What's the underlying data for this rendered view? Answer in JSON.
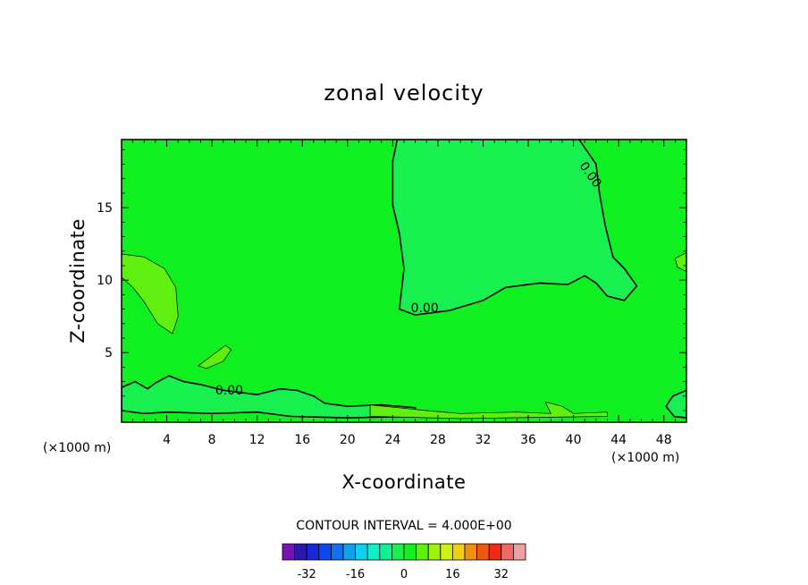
{
  "chart_data": {
    "type": "heatmap",
    "title": "zonal velocity",
    "xlabel": "X-coordinate",
    "ylabel": "Z-coordinate",
    "x_unit": "(×1000 m)",
    "z_unit": "(×1000 m)",
    "xlim": [
      0,
      50
    ],
    "ylim": [
      0.2,
      19.7
    ],
    "x_ticks": [
      4,
      8,
      12,
      16,
      20,
      24,
      28,
      32,
      36,
      40,
      44,
      48
    ],
    "y_ticks": [
      5,
      10,
      15
    ],
    "contour_interval_text": "CONTOUR INTERVAL = 4.000E+00",
    "contour_level_label": "0.00",
    "colorbar": {
      "levels": [
        -36,
        -32,
        -28,
        -24,
        -20,
        -16,
        -12,
        -8,
        -4,
        0,
        4,
        8,
        12,
        16,
        20,
        24,
        28,
        32,
        36
      ],
      "tick_labels": [
        "-32",
        "-16",
        "0",
        "16",
        "32"
      ],
      "tick_values": [
        -32,
        -16,
        0,
        16,
        32
      ],
      "colors": [
        "#7a10b8",
        "#2a18a8",
        "#1828d8",
        "#1048f0",
        "#1070f0",
        "#10a0f0",
        "#10d0f0",
        "#10f0c8",
        "#10f090",
        "#18f050",
        "#10f020",
        "#60f010",
        "#a0f010",
        "#d0f010",
        "#f0d010",
        "#f09010",
        "#f05810",
        "#f02818",
        "#f06868",
        "#f0a0a0"
      ]
    },
    "background_value_color": "#10f020",
    "regions": [
      {
        "name": "negative-upper-right",
        "color": "#18f050",
        "level": "0 to -4",
        "points": [
          [
            24.4,
            19.7
          ],
          [
            24.0,
            18.2
          ],
          [
            24.0,
            15.2
          ],
          [
            24.6,
            13.2
          ],
          [
            25.0,
            10.8
          ],
          [
            24.6,
            8.0
          ],
          [
            26.0,
            7.6
          ],
          [
            29.0,
            7.9
          ],
          [
            32.0,
            8.6
          ],
          [
            34.0,
            9.5
          ],
          [
            37.0,
            9.8
          ],
          [
            39.5,
            9.7
          ],
          [
            41.0,
            10.3
          ],
          [
            42.0,
            9.8
          ],
          [
            43.0,
            8.9
          ],
          [
            44.5,
            8.6
          ],
          [
            45.6,
            9.6
          ],
          [
            44.5,
            10.8
          ],
          [
            43.5,
            11.6
          ],
          [
            42.8,
            13.8
          ],
          [
            42.3,
            16.0
          ],
          [
            42.0,
            18.0
          ],
          [
            40.5,
            19.7
          ]
        ]
      },
      {
        "name": "negative-lower-left",
        "color": "#18f050",
        "level": "0 to -4",
        "points": [
          [
            0,
            2.6
          ],
          [
            1.2,
            3.0
          ],
          [
            2.3,
            2.5
          ],
          [
            3.0,
            2.9
          ],
          [
            4.2,
            3.4
          ],
          [
            5.5,
            3.0
          ],
          [
            7.0,
            2.8
          ],
          [
            9.0,
            2.4
          ],
          [
            12.0,
            2.1
          ],
          [
            14.0,
            2.5
          ],
          [
            15.5,
            2.4
          ],
          [
            17.0,
            2.0
          ],
          [
            18.0,
            1.5
          ],
          [
            20.0,
            1.3
          ],
          [
            23.0,
            1.4
          ],
          [
            26.0,
            1.2
          ],
          [
            26.0,
            0.6
          ],
          [
            20.0,
            0.5
          ],
          [
            15.0,
            0.6
          ],
          [
            12.0,
            0.9
          ],
          [
            8.0,
            0.8
          ],
          [
            4.0,
            0.9
          ],
          [
            2.0,
            0.8
          ],
          [
            0,
            1.0
          ]
        ]
      },
      {
        "name": "positive-left",
        "color": "#60f010",
        "level": "0 to 4",
        "points": [
          [
            0,
            11.8
          ],
          [
            2.0,
            11.6
          ],
          [
            3.8,
            10.8
          ],
          [
            4.8,
            9.5
          ],
          [
            5.0,
            7.5
          ],
          [
            4.5,
            6.3
          ],
          [
            3.2,
            7.0
          ],
          [
            2.0,
            8.5
          ],
          [
            1.0,
            9.5
          ],
          [
            0,
            10.2
          ]
        ]
      },
      {
        "name": "positive-blob",
        "color": "#60f010",
        "level": "0 to 4",
        "points": [
          [
            6.8,
            4.1
          ],
          [
            8.0,
            4.8
          ],
          [
            9.2,
            5.5
          ],
          [
            9.7,
            5.2
          ],
          [
            9.0,
            4.4
          ],
          [
            7.5,
            3.9
          ]
        ]
      },
      {
        "name": "positive-right-edge",
        "color": "#60f010",
        "level": "0 to 4",
        "points": [
          [
            50,
            11.9
          ],
          [
            49.0,
            11.5
          ],
          [
            49.2,
            10.9
          ],
          [
            50,
            10.6
          ]
        ]
      },
      {
        "name": "negative-right-edge",
        "color": "#18f050",
        "level": "0 to -4",
        "points": [
          [
            50,
            2.4
          ],
          [
            48.8,
            2.0
          ],
          [
            48.2,
            1.3
          ],
          [
            48.9,
            0.6
          ],
          [
            50,
            0.5
          ]
        ]
      },
      {
        "name": "positive-bottom-strip",
        "color": "#60f010",
        "level": "0 to 4",
        "points": [
          [
            22,
            1.4
          ],
          [
            24.5,
            1.2
          ],
          [
            27,
            1.0
          ],
          [
            30,
            0.8
          ],
          [
            35,
            0.9
          ],
          [
            38,
            0.8
          ],
          [
            37.5,
            1.6
          ],
          [
            39,
            1.3
          ],
          [
            40,
            0.8
          ],
          [
            43,
            0.9
          ],
          [
            43,
            0.6
          ],
          [
            30,
            0.45
          ],
          [
            22,
            0.6
          ]
        ]
      }
    ]
  }
}
